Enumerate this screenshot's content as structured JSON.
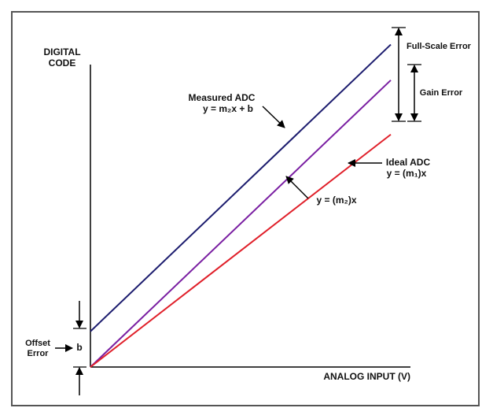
{
  "chart_data": {
    "type": "line",
    "ylabel_line1": "DIGITAL",
    "ylabel_line2": "CODE",
    "xlabel": "ANALOG INPUT (V)",
    "x_range": [
      0,
      10
    ],
    "y_range": [
      0,
      10
    ],
    "grid": false,
    "series": [
      {
        "name": "Measured ADC",
        "equation": "y = m₂x + b",
        "intercept": 1.05,
        "end_y": 9.5,
        "color": "#1c1c6e"
      },
      {
        "name": "",
        "equation": "y = (m₂)x",
        "intercept": 0,
        "end_y": 8.45,
        "color": "#7a1fa2"
      },
      {
        "name": "Ideal ADC",
        "equation": "y = (m₁)x",
        "intercept": 0,
        "end_y": 6.85,
        "color": "#e0202a"
      }
    ],
    "annotations": {
      "full_scale_error": "Full-Scale Error",
      "gain_error": "Gain Error",
      "offset_error_line1": "Offset",
      "offset_error_line2": "Error",
      "offset_symbol": "b"
    }
  }
}
